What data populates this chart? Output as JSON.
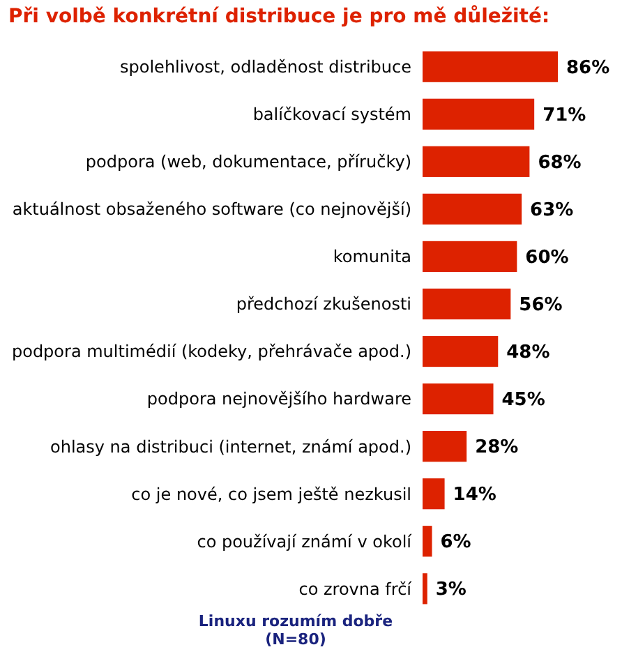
{
  "chart_data": {
    "type": "bar",
    "orientation": "horizontal",
    "title": "Při volbě konkrétní distribuce je pro mě důležité:",
    "categories": [
      "spolehlivost, odladěnost distribuce",
      "balíčkovací systém",
      "podpora (web, dokumentace, příručky)",
      "aktuálnost obsaženého software (co nejnovější)",
      "komunita",
      "předchozí zkušenosti",
      "podpora multimédií (kodeky, přehrávače apod.)",
      "podpora nejnovějšího hardware",
      "ohlasy na distribuci (internet, známí apod.)",
      "co je nové, co jsem ještě nezkusil",
      "co používají známí v okolí",
      "co zrovna frčí"
    ],
    "values": [
      86,
      71,
      68,
      63,
      60,
      56,
      48,
      45,
      28,
      14,
      6,
      3
    ],
    "value_labels": [
      "86%",
      "71%",
      "68%",
      "63%",
      "60%",
      "56%",
      "48%",
      "45%",
      "28%",
      "14%",
      "6%",
      "3%"
    ],
    "color": "#dd2200",
    "annotations": [
      "Linuxu rozumím dobře",
      "(N=80)"
    ]
  }
}
